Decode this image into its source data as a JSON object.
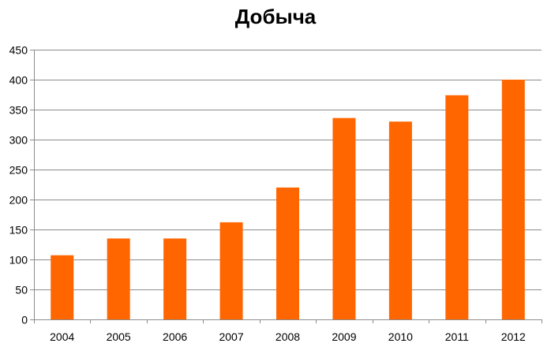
{
  "chart_data": {
    "type": "bar",
    "title": "Добыча",
    "xlabel": "",
    "ylabel": "",
    "categories": [
      "2004",
      "2005",
      "2006",
      "2007",
      "2008",
      "2009",
      "2010",
      "2011",
      "2012"
    ],
    "series": [
      {
        "values": [
          107,
          135,
          135,
          162,
          220,
          336,
          330,
          374,
          400
        ]
      }
    ],
    "ylim": [
      0,
      450
    ],
    "yticks": [
      0,
      50,
      100,
      150,
      200,
      250,
      300,
      350,
      400,
      450
    ],
    "grid": true,
    "legend": "none",
    "colors": {
      "bar": "#ff6600",
      "grid": "#8c8c8c",
      "axis": "#8c8c8c"
    }
  }
}
